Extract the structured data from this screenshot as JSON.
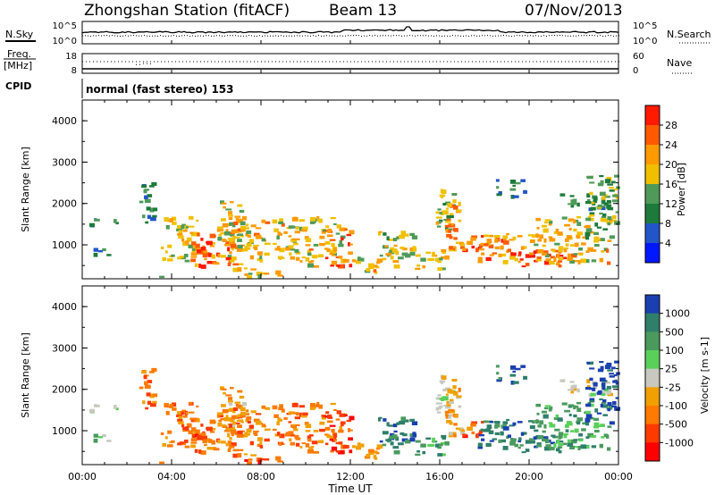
{
  "header": {
    "station": "Zhongshan Station (fitACF)",
    "beam": "Beam 13",
    "date": "07/Nov/2013"
  },
  "strip_noise": {
    "left_label": "N.Sky",
    "right_label": "N.Search",
    "left_ticks": [
      "10^5",
      "10^0"
    ],
    "right_ticks": [
      "10^5",
      "10^0"
    ]
  },
  "strip_freq": {
    "left_label_1": "Freq.",
    "left_label_2": "[MHz]",
    "right_label": "Nave",
    "left_ticks": [
      "18",
      "8"
    ],
    "right_ticks": [
      "60",
      "0"
    ]
  },
  "cpid": {
    "label": "CPID",
    "value": "normal (fast stereo) 153"
  },
  "chart_data": [
    {
      "type": "heatmap",
      "ylabel": "Slant Range [km]",
      "ylim": [
        180,
        4500
      ],
      "yticks": [
        "1000",
        "2000",
        "3000",
        "4000"
      ],
      "xlim": [
        0,
        24
      ],
      "colorbar": {
        "label": "Power [dB]",
        "ticks": [
          "4",
          "8",
          "12",
          "16",
          "20",
          "24",
          "28"
        ],
        "colors": [
          "#0018ff",
          "#2255c8",
          "#1d7a3a",
          "#4f9a58",
          "#f0c000",
          "#ff9a00",
          "#ff5a00",
          "#ff1a00"
        ]
      }
    },
    {
      "type": "heatmap",
      "ylabel": "Slant Range [km]",
      "ylim": [
        180,
        4500
      ],
      "yticks": [
        "1000",
        "2000",
        "3000",
        "4000"
      ],
      "xlim": [
        0,
        24
      ],
      "xticks": [
        "00:00",
        "04:00",
        "08:00",
        "12:00",
        "16:00",
        "20:00",
        "00:00"
      ],
      "xlabel": "Time UT",
      "colorbar": {
        "label": "Velocity [m s-1]",
        "ticks": [
          "1000",
          "500",
          "100",
          "25",
          "-25",
          "-100",
          "-500",
          "-1000"
        ],
        "colors": [
          "#1a3fb0",
          "#2f7f6a",
          "#4a9a5e",
          "#5ad05a",
          "#c8c8c0",
          "#f0a000",
          "#ff7a00",
          "#ff3a00",
          "#ff0000"
        ]
      }
    }
  ]
}
